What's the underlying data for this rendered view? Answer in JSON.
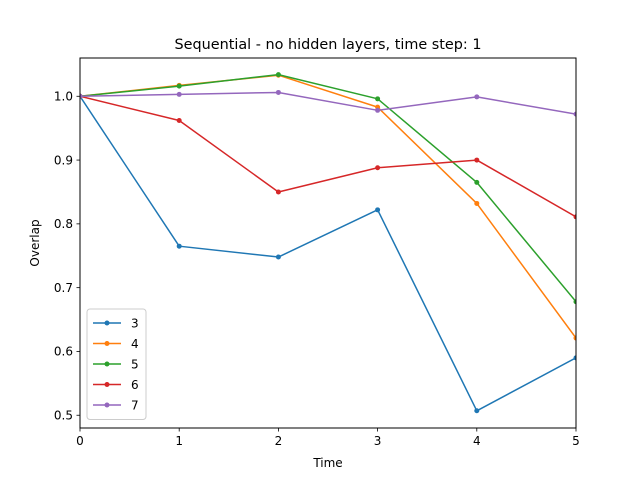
{
  "chart_data": {
    "type": "line",
    "title": "Sequential - no hidden layers, time step: 1",
    "xlabel": "Time",
    "ylabel": "Overlap",
    "x": [
      0,
      1,
      2,
      3,
      4,
      5
    ],
    "xlim": [
      0,
      5
    ],
    "ylim": [
      0.48,
      1.06
    ],
    "xticks": [
      "0",
      "1",
      "2",
      "3",
      "4",
      "5"
    ],
    "yticks": [
      "0.5",
      "0.6",
      "0.7",
      "0.8",
      "0.9",
      "1.0"
    ],
    "ytick_values": [
      0.5,
      0.6,
      0.7,
      0.8,
      0.9,
      1.0
    ],
    "grid": false,
    "legend_position": "lower-left",
    "series": [
      {
        "name": "3",
        "color": "#1f77b4",
        "values": [
          1.0,
          0.765,
          0.748,
          0.822,
          0.507,
          0.59
        ]
      },
      {
        "name": "4",
        "color": "#ff7f0e",
        "values": [
          1.0,
          1.017,
          1.033,
          0.983,
          0.832,
          0.621
        ]
      },
      {
        "name": "5",
        "color": "#2ca02c",
        "values": [
          1.0,
          1.016,
          1.034,
          0.996,
          0.865,
          0.678
        ]
      },
      {
        "name": "6",
        "color": "#d62728",
        "values": [
          1.0,
          0.962,
          0.85,
          0.888,
          0.9,
          0.811
        ]
      },
      {
        "name": "7",
        "color": "#9467bd",
        "values": [
          1.0,
          1.003,
          1.006,
          0.978,
          0.999,
          0.972
        ]
      }
    ]
  }
}
